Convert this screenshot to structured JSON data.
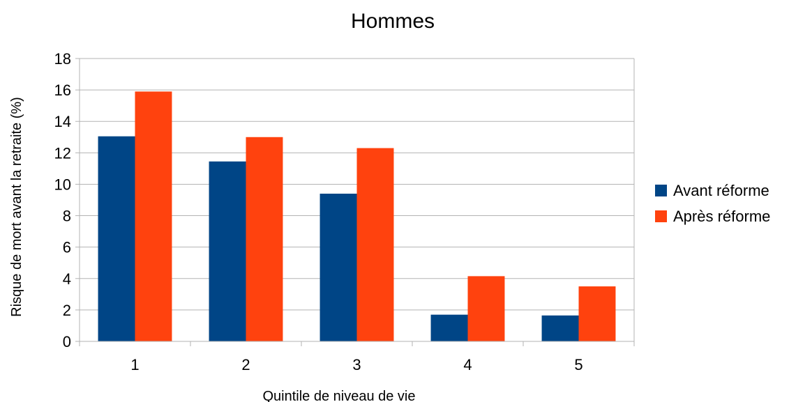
{
  "chart_data": {
    "type": "bar",
    "title": "Hommes",
    "xlabel": "Quintile de niveau de vie",
    "ylabel": "Risque de mort avant la retraite (%)",
    "categories": [
      "1",
      "2",
      "3",
      "4",
      "5"
    ],
    "ylim": [
      0,
      18
    ],
    "yticks": [
      0,
      2,
      4,
      6,
      8,
      10,
      12,
      14,
      16,
      18
    ],
    "grid": true,
    "legend_position": "right",
    "series": [
      {
        "name": "Avant réforme",
        "color": "#004586",
        "values": [
          13.05,
          11.45,
          9.4,
          1.7,
          1.65
        ]
      },
      {
        "name": "Après réforme",
        "color": "#ff420e",
        "values": [
          15.9,
          13.0,
          12.3,
          4.15,
          3.5
        ]
      }
    ]
  }
}
